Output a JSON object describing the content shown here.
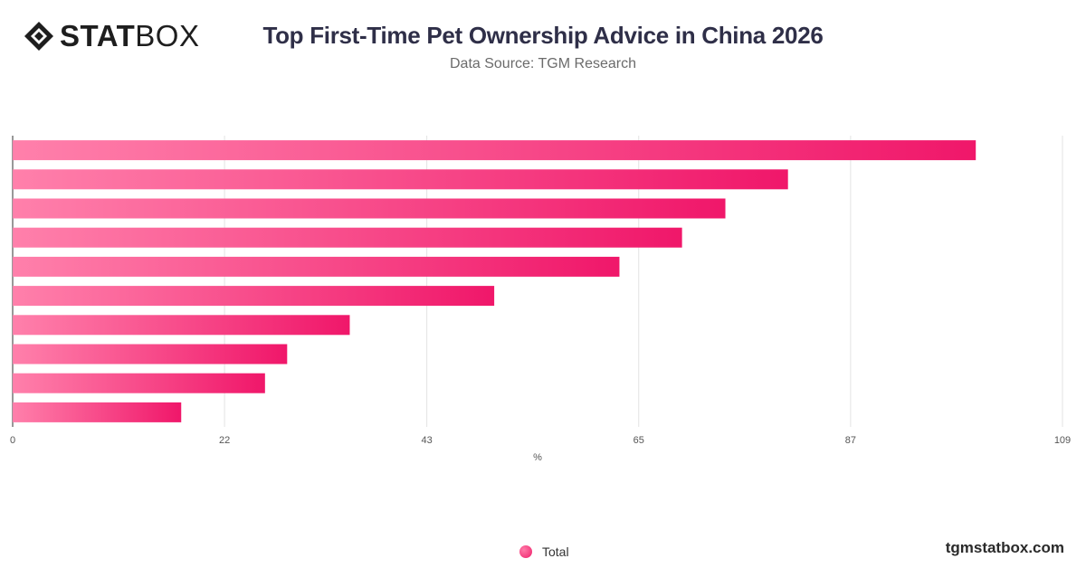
{
  "header": {
    "logo_bold": "STAT",
    "logo_light": "BOX",
    "title": "Top First-Time Pet Ownership Advice in China 2026",
    "subtitle": "Data Source: TGM Research"
  },
  "legend": {
    "label": "Total"
  },
  "footer": {
    "site": "tgmstatbox.com"
  },
  "colors": {
    "bar_start": "#ff80ab",
    "bar_end": "#f0176a",
    "grid": "#e3e3e3",
    "axis": "#555555"
  },
  "chart_data": {
    "type": "bar",
    "orientation": "horizontal",
    "categories": [
      "",
      "",
      "",
      "",
      "",
      "",
      "",
      "",
      "",
      ""
    ],
    "series": [
      {
        "name": "Total",
        "values": [
          100,
          80.5,
          74,
          69.5,
          63,
          50,
          35,
          28.5,
          26.2,
          17.5
        ]
      }
    ],
    "xlabel": "%",
    "ylabel": "",
    "xlim": [
      0,
      109
    ],
    "xticks": [
      "0",
      "22",
      "43",
      "65",
      "87",
      "109"
    ],
    "grid": true,
    "legend_position": "bottom-center"
  }
}
